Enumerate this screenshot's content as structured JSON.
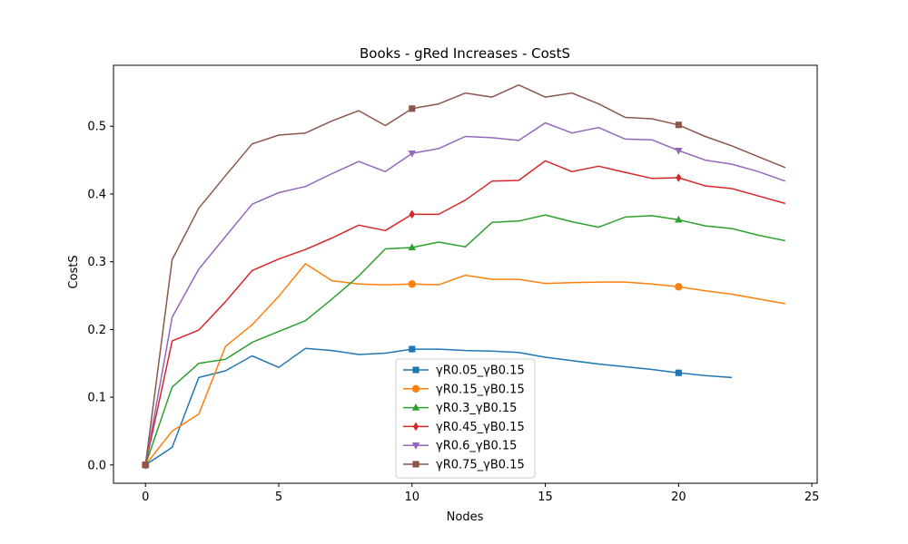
{
  "chart_data": {
    "type": "line",
    "title": "Books - gRed Increases - CostS",
    "xlabel": "Nodes",
    "ylabel": "CostS",
    "xlim": [
      -1.2,
      25.2
    ],
    "ylim": [
      -0.027,
      0.59
    ],
    "xticks": [
      0,
      5,
      10,
      15,
      20,
      25
    ],
    "yticks": [
      0.0,
      0.1,
      0.2,
      0.3,
      0.4,
      0.5
    ],
    "ytick_labels": [
      "0.0",
      "0.1",
      "0.2",
      "0.3",
      "0.4",
      "0.5"
    ],
    "xtick_labels": [
      "0",
      "5",
      "10",
      "15",
      "20",
      "25"
    ],
    "grid": false,
    "legend_position": "bottom-center",
    "marker_every": [
      0,
      10,
      20
    ],
    "series": [
      {
        "name": "γR0.05_γB0.15",
        "color": "#1f77b4",
        "marker": "square",
        "x": [
          0,
          1,
          2,
          3,
          4,
          5,
          6,
          7,
          8,
          9,
          10,
          11,
          12,
          13,
          14,
          15,
          16,
          17,
          18,
          19,
          20,
          21,
          22
        ],
        "y": [
          0.0,
          0.026,
          0.129,
          0.139,
          0.161,
          0.144,
          0.172,
          0.169,
          0.163,
          0.165,
          0.171,
          0.171,
          0.169,
          0.168,
          0.166,
          0.159,
          0.154,
          0.149,
          0.145,
          0.141,
          0.136,
          0.132,
          0.129
        ]
      },
      {
        "name": "γR0.15_γB0.15",
        "color": "#ff7f0e",
        "marker": "circle",
        "x": [
          0,
          1,
          2,
          3,
          4,
          5,
          6,
          7,
          8,
          9,
          10,
          11,
          12,
          13,
          14,
          15,
          16,
          17,
          18,
          19,
          20,
          21,
          22,
          23,
          24
        ],
        "y": [
          0.0,
          0.05,
          0.075,
          0.175,
          0.207,
          0.249,
          0.297,
          0.272,
          0.267,
          0.266,
          0.267,
          0.266,
          0.28,
          0.274,
          0.274,
          0.268,
          0.269,
          0.27,
          0.27,
          0.267,
          0.263,
          0.257,
          0.252,
          0.245,
          0.238
        ]
      },
      {
        "name": "γR0.3_γB0.15",
        "color": "#2ca02c",
        "marker": "triangle-up",
        "x": [
          0,
          1,
          2,
          3,
          4,
          5,
          6,
          7,
          8,
          9,
          10,
          11,
          12,
          13,
          14,
          15,
          16,
          17,
          18,
          19,
          20,
          21,
          22,
          23,
          24
        ],
        "y": [
          0.0,
          0.115,
          0.15,
          0.156,
          0.181,
          0.197,
          0.213,
          0.245,
          0.279,
          0.319,
          0.321,
          0.329,
          0.322,
          0.358,
          0.36,
          0.369,
          0.359,
          0.351,
          0.366,
          0.368,
          0.362,
          0.353,
          0.349,
          0.339,
          0.331
        ]
      },
      {
        "name": "γR0.45_γB0.15",
        "color": "#d62728",
        "marker": "diamond",
        "x": [
          0,
          1,
          2,
          3,
          4,
          5,
          6,
          7,
          8,
          9,
          10,
          11,
          12,
          13,
          14,
          15,
          16,
          17,
          18,
          19,
          20,
          21,
          22,
          23,
          24
        ],
        "y": [
          0.0,
          0.183,
          0.199,
          0.241,
          0.287,
          0.304,
          0.318,
          0.335,
          0.354,
          0.346,
          0.37,
          0.37,
          0.391,
          0.419,
          0.42,
          0.449,
          0.433,
          0.441,
          0.432,
          0.423,
          0.424,
          0.412,
          0.408,
          0.397,
          0.386
        ]
      },
      {
        "name": "γR0.6_γB0.15",
        "color": "#9467bd",
        "marker": "triangle-down",
        "x": [
          0,
          1,
          2,
          3,
          4,
          5,
          6,
          7,
          8,
          9,
          10,
          11,
          12,
          13,
          14,
          15,
          16,
          17,
          18,
          19,
          20,
          21,
          22,
          23,
          24
        ],
        "y": [
          0.0,
          0.218,
          0.289,
          0.337,
          0.385,
          0.402,
          0.411,
          0.43,
          0.448,
          0.433,
          0.46,
          0.467,
          0.485,
          0.483,
          0.479,
          0.505,
          0.49,
          0.498,
          0.481,
          0.48,
          0.464,
          0.45,
          0.444,
          0.433,
          0.419
        ]
      },
      {
        "name": "γR0.75_γB0.15",
        "color": "#8c564b",
        "marker": "square",
        "x": [
          0,
          1,
          2,
          3,
          4,
          5,
          6,
          7,
          8,
          9,
          10,
          11,
          12,
          13,
          14,
          15,
          16,
          17,
          18,
          19,
          20,
          21,
          22,
          23,
          24
        ],
        "y": [
          0.0,
          0.303,
          0.379,
          0.427,
          0.474,
          0.487,
          0.49,
          0.508,
          0.523,
          0.501,
          0.526,
          0.533,
          0.549,
          0.543,
          0.561,
          0.543,
          0.549,
          0.533,
          0.513,
          0.511,
          0.502,
          0.485,
          0.471,
          0.455,
          0.439
        ]
      }
    ]
  }
}
